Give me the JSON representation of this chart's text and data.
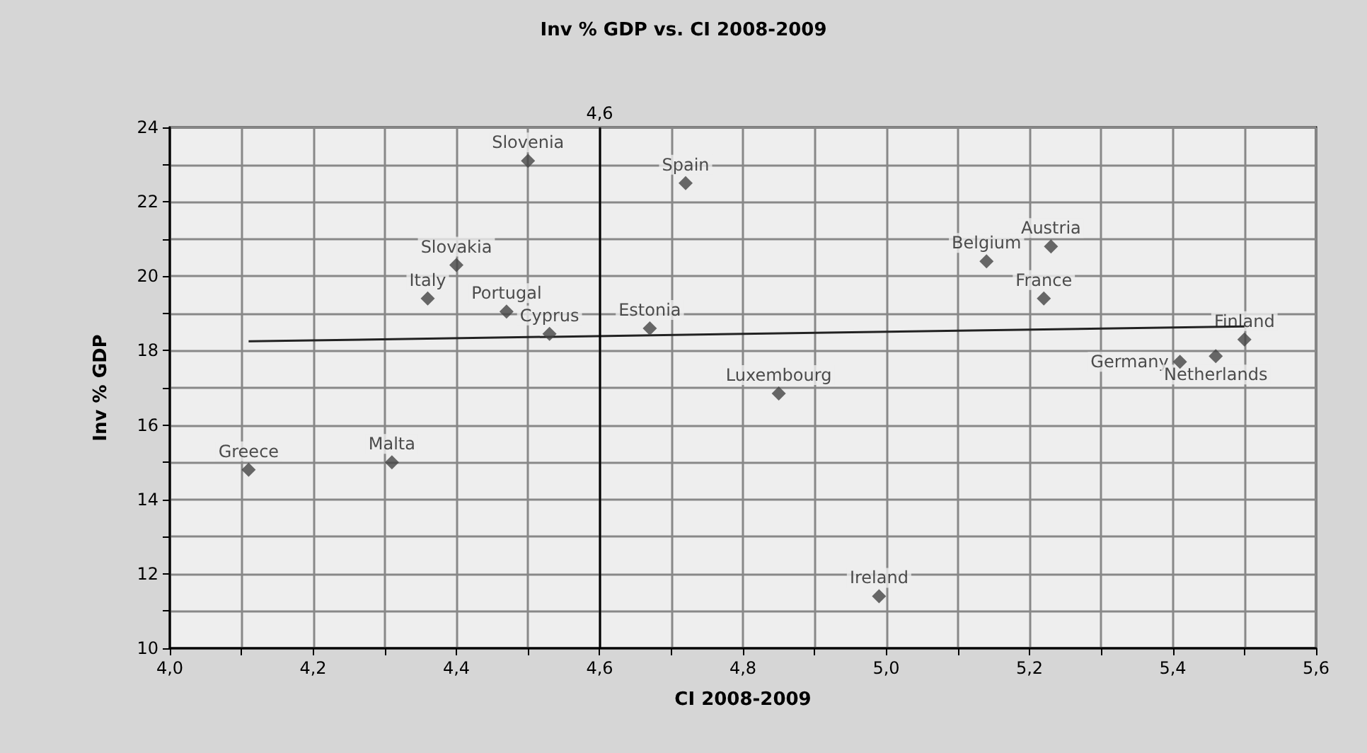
{
  "chart_data": {
    "type": "scatter",
    "title": "Inv % GDP vs. CI 2008-2009",
    "xlabel": "CI 2008-2009",
    "ylabel": "Inv % GDP",
    "series": [
      {
        "color": "#444444",
        "x": [
          4.5,
          4.72,
          4.4,
          4.36,
          4.47,
          4.53,
          4.67,
          4.85,
          5.14,
          5.23,
          5.22,
          5.5,
          5.41,
          5.46,
          4.11,
          4.31,
          4.99
        ],
        "values": [
          23.1,
          22.5,
          20.3,
          19.4,
          19.05,
          18.45,
          18.6,
          16.85,
          20.4,
          20.8,
          19.4,
          18.3,
          17.7,
          17.85,
          14.8,
          15.0,
          11.4
        ]
      },
      {
        "type": "line",
        "color": "#222222",
        "marker": "none",
        "x": [
          4.11,
          5.5
        ],
        "values": [
          18.25,
          18.65
        ]
      }
    ],
    "annotations": [
      {
        "text": "Slovenia",
        "x": 4.5,
        "y": 23.1
      },
      {
        "text": "Spain",
        "x": 4.72,
        "y": 22.5
      },
      {
        "text": "Slovakia",
        "x": 4.4,
        "y": 20.3
      },
      {
        "text": "Italy",
        "x": 4.36,
        "y": 19.4
      },
      {
        "text": "Portugal",
        "x": 4.47,
        "y": 19.05
      },
      {
        "text": "Cyprus",
        "x": 4.53,
        "y": 18.45
      },
      {
        "text": "Estonia",
        "x": 4.67,
        "y": 18.6
      },
      {
        "text": "Luxembourg",
        "x": 4.85,
        "y": 16.85
      },
      {
        "text": "Belgium",
        "x": 5.14,
        "y": 20.4
      },
      {
        "text": "Austria",
        "x": 5.23,
        "y": 20.8
      },
      {
        "text": "France",
        "x": 5.22,
        "y": 19.4
      },
      {
        "text": "Finland",
        "x": 5.5,
        "y": 18.3
      },
      {
        "text": "Germany",
        "x": 5.41,
        "y": 17.7
      },
      {
        "text": "Netherlands",
        "x": 5.46,
        "y": 17.85
      },
      {
        "text": "Greece",
        "x": 4.11,
        "y": 14.8
      },
      {
        "text": "Malta",
        "x": 4.31,
        "y": 15.0
      },
      {
        "text": "Ireland",
        "x": 4.99,
        "y": 11.4
      }
    ],
    "ref_lines": [
      {
        "axis": "x",
        "value": 4.6,
        "label": "4,6",
        "color": "#000000"
      }
    ],
    "xlim": [
      4.0,
      5.6
    ],
    "xticks": [
      {
        "value": 4.0,
        "label": "4,0"
      },
      {
        "value": 4.1,
        "label": null
      },
      {
        "value": 4.2,
        "label": "4,2"
      },
      {
        "value": 4.3,
        "label": null
      },
      {
        "value": 4.4,
        "label": "4,4"
      },
      {
        "value": 4.5,
        "label": null
      },
      {
        "value": 4.6,
        "label": "4,6"
      },
      {
        "value": 4.7,
        "label": null
      },
      {
        "value": 4.8,
        "label": "4,8"
      },
      {
        "value": 4.9,
        "label": null
      },
      {
        "value": 5.0,
        "label": "5,0"
      },
      {
        "value": 5.1,
        "label": null
      },
      {
        "value": 5.2,
        "label": "5,2"
      },
      {
        "value": 5.3,
        "label": null
      },
      {
        "value": 5.4,
        "label": "5,4"
      },
      {
        "value": 5.5,
        "label": null
      },
      {
        "value": 5.6,
        "label": "5,6"
      }
    ],
    "ylim": [
      10,
      24
    ],
    "yticks": [
      10,
      {
        "value": 11,
        "label": null
      },
      12,
      {
        "value": 13,
        "label": null
      },
      14,
      {
        "value": 15,
        "label": null
      },
      16,
      {
        "value": 17,
        "label": null
      },
      18,
      {
        "value": 19,
        "label": null
      },
      20,
      {
        "value": 21,
        "label": null
      },
      22,
      {
        "value": 23,
        "label": null
      },
      24
    ],
    "grid": true,
    "marker": "diamond"
  }
}
